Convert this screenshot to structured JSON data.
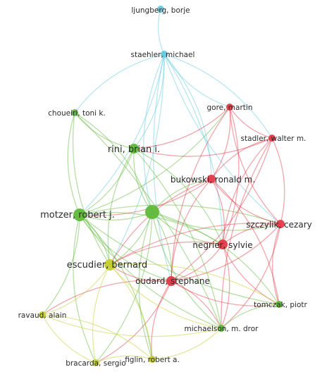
{
  "colors": {
    "cyan": "#63c9dc",
    "green": "#5fb93a",
    "red": "#e03a47",
    "yellow": "#c3cf2b"
  },
  "network": {
    "nodes": [
      {
        "id": "ljungberg",
        "label": "ljungberg, borje",
        "cluster": "cyan"
      },
      {
        "id": "staehler",
        "label": "staehler, michael",
        "cluster": "cyan"
      },
      {
        "id": "gore",
        "label": "gore, martin",
        "cluster": "red"
      },
      {
        "id": "choueiri",
        "label": "choueiri, toni k.",
        "cluster": "green"
      },
      {
        "id": "stadler",
        "label": "stadler, walter m.",
        "cluster": "red"
      },
      {
        "id": "rini",
        "label": "rini, brian i.",
        "cluster": "green"
      },
      {
        "id": "bukowski",
        "label": "bukowski, ronald m.",
        "cluster": "red"
      },
      {
        "id": "motzer",
        "label": "motzer, robert j.",
        "cluster": "green"
      },
      {
        "id": "unlabeled",
        "label": "",
        "cluster": "green"
      },
      {
        "id": "szczylik",
        "label": "szczylik, cezary",
        "cluster": "red"
      },
      {
        "id": "negrier",
        "label": "negrier, sylvie",
        "cluster": "red"
      },
      {
        "id": "escudier",
        "label": "escudier, bernard",
        "cluster": "yellow"
      },
      {
        "id": "oudard",
        "label": "oudard, stephane",
        "cluster": "red"
      },
      {
        "id": "tomczak",
        "label": "tomczak, piotr",
        "cluster": "green"
      },
      {
        "id": "ravaud",
        "label": "ravaud, alain",
        "cluster": "yellow"
      },
      {
        "id": "michaelson",
        "label": "michaelson, m. dror",
        "cluster": "green"
      },
      {
        "id": "figlin",
        "label": "figlin, robert a.",
        "cluster": "yellow"
      },
      {
        "id": "bracarda",
        "label": "bracarda, sergio",
        "cluster": "yellow"
      }
    ],
    "edges": [
      [
        "ljungberg",
        "staehler"
      ],
      [
        "staehler",
        "rini"
      ],
      [
        "staehler",
        "choueiri"
      ],
      [
        "staehler",
        "motzer"
      ],
      [
        "staehler",
        "unlabeled"
      ],
      [
        "staehler",
        "bukowski"
      ],
      [
        "staehler",
        "gore"
      ],
      [
        "staehler",
        "stadler"
      ],
      [
        "staehler",
        "szczylik"
      ],
      [
        "staehler",
        "negrier"
      ],
      [
        "staehler",
        "oudard"
      ],
      [
        "staehler",
        "escudier"
      ],
      [
        "choueiri",
        "motzer"
      ],
      [
        "choueiri",
        "unlabeled"
      ],
      [
        "choueiri",
        "rini"
      ],
      [
        "choueiri",
        "michaelson"
      ],
      [
        "choueiri",
        "escudier"
      ],
      [
        "rini",
        "motzer"
      ],
      [
        "rini",
        "unlabeled"
      ],
      [
        "rini",
        "michaelson"
      ],
      [
        "rini",
        "escudier"
      ],
      [
        "rini",
        "negrier"
      ],
      [
        "motzer",
        "unlabeled"
      ],
      [
        "motzer",
        "escudier"
      ],
      [
        "motzer",
        "michaelson"
      ],
      [
        "motzer",
        "negrier"
      ],
      [
        "motzer",
        "oudard"
      ],
      [
        "motzer",
        "szczylik"
      ],
      [
        "motzer",
        "tomczak"
      ],
      [
        "motzer",
        "ravaud"
      ],
      [
        "motzer",
        "bracarda"
      ],
      [
        "motzer",
        "figlin"
      ],
      [
        "motzer",
        "gore"
      ],
      [
        "unlabeled",
        "escudier"
      ],
      [
        "unlabeled",
        "michaelson"
      ],
      [
        "unlabeled",
        "tomczak"
      ],
      [
        "unlabeled",
        "negrier"
      ],
      [
        "unlabeled",
        "oudard"
      ],
      [
        "unlabeled",
        "szczylik"
      ],
      [
        "unlabeled",
        "bukowski"
      ],
      [
        "unlabeled",
        "figlin"
      ],
      [
        "unlabeled",
        "bracarda"
      ],
      [
        "gore",
        "stadler"
      ],
      [
        "gore",
        "bukowski"
      ],
      [
        "gore",
        "szczylik"
      ],
      [
        "gore",
        "negrier"
      ],
      [
        "gore",
        "oudard"
      ],
      [
        "gore",
        "rini"
      ],
      [
        "stadler",
        "bukowski"
      ],
      [
        "stadler",
        "szczylik"
      ],
      [
        "stadler",
        "negrier"
      ],
      [
        "stadler",
        "oudard"
      ],
      [
        "stadler",
        "michaelson"
      ],
      [
        "stadler",
        "rini"
      ],
      [
        "bukowski",
        "szczylik"
      ],
      [
        "bukowski",
        "negrier"
      ],
      [
        "bukowski",
        "oudard"
      ],
      [
        "bukowski",
        "motzer"
      ],
      [
        "bukowski",
        "escudier"
      ],
      [
        "bukowski",
        "tomczak"
      ],
      [
        "szczylik",
        "negrier"
      ],
      [
        "szczylik",
        "oudard"
      ],
      [
        "szczylik",
        "tomczak"
      ],
      [
        "szczylik",
        "michaelson"
      ],
      [
        "szczylik",
        "escudier"
      ],
      [
        "negrier",
        "oudard"
      ],
      [
        "negrier",
        "escudier"
      ],
      [
        "negrier",
        "michaelson"
      ],
      [
        "negrier",
        "tomczak"
      ],
      [
        "oudard",
        "escudier"
      ],
      [
        "oudard",
        "ravaud"
      ],
      [
        "oudard",
        "bracarda"
      ],
      [
        "oudard",
        "figlin"
      ],
      [
        "oudard",
        "michaelson"
      ],
      [
        "oudard",
        "tomczak"
      ],
      [
        "escudier",
        "ravaud"
      ],
      [
        "escudier",
        "bracarda"
      ],
      [
        "escudier",
        "figlin"
      ],
      [
        "escudier",
        "michaelson"
      ],
      [
        "escudier",
        "tomczak"
      ],
      [
        "ravaud",
        "bracarda"
      ],
      [
        "ravaud",
        "figlin"
      ],
      [
        "ravaud",
        "michaelson"
      ],
      [
        "bracarda",
        "figlin"
      ],
      [
        "figlin",
        "michaelson"
      ],
      [
        "michaelson",
        "tomczak"
      ]
    ]
  }
}
